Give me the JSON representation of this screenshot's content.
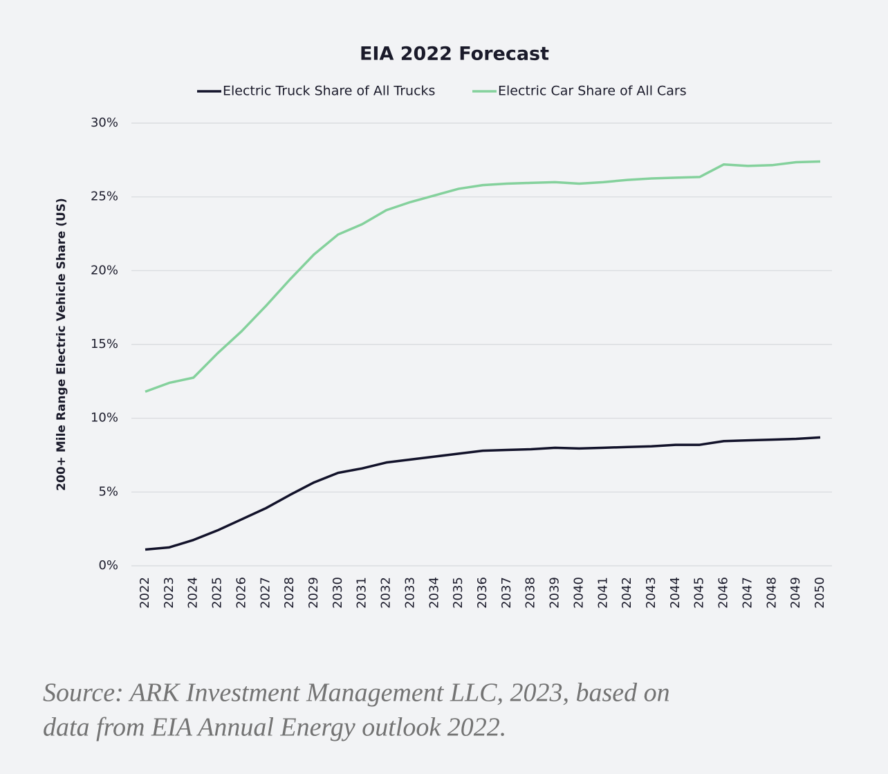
{
  "chart_data": {
    "type": "line",
    "title": "EIA 2022 Forecast",
    "y_label": "200+ Mile Range Electric Vehicle Share (US)",
    "categories": [
      "2022",
      "2023",
      "2024",
      "2025",
      "2026",
      "2027",
      "2028",
      "2029",
      "2030",
      "2031",
      "2032",
      "2033",
      "2034",
      "2035",
      "2036",
      "2037",
      "2038",
      "2039",
      "2040",
      "2041",
      "2042",
      "2043",
      "2044",
      "2045",
      "2046",
      "2047",
      "2048",
      "2049",
      "2050"
    ],
    "series": [
      {
        "name": "Electric Truck Share of All Trucks",
        "color": "#12122a",
        "values": [
          1.1,
          1.25,
          1.75,
          2.4,
          3.15,
          3.9,
          4.8,
          5.65,
          6.3,
          6.6,
          7.0,
          7.2,
          7.4,
          7.6,
          7.8,
          7.85,
          7.9,
          8.0,
          7.95,
          8.0,
          8.05,
          8.1,
          8.2,
          8.2,
          8.45,
          8.5,
          8.55,
          8.6,
          8.7
        ]
      },
      {
        "name": "Electric Car Share of All Cars",
        "color": "#84d19c",
        "values": [
          11.8,
          12.4,
          12.75,
          14.4,
          15.9,
          17.6,
          19.4,
          21.1,
          22.45,
          23.15,
          24.1,
          24.65,
          25.1,
          25.55,
          25.8,
          25.9,
          25.95,
          26.0,
          25.9,
          26.0,
          26.15,
          26.25,
          26.3,
          26.35,
          27.2,
          27.1,
          27.15,
          27.35,
          27.4
        ]
      }
    ],
    "ylim": [
      0,
      30
    ],
    "yticks": [
      {
        "value": 0,
        "label": "0%"
      },
      {
        "value": 5,
        "label": "5%"
      },
      {
        "value": 10,
        "label": "10%"
      },
      {
        "value": 15,
        "label": "15%"
      },
      {
        "value": 20,
        "label": "20%"
      },
      {
        "value": 25,
        "label": "25%"
      },
      {
        "value": 30,
        "label": "30%"
      }
    ],
    "grid": true,
    "legend": "top",
    "source": [
      "Source: ARK Investment Management LLC, 2023, based on",
      "data from EIA Annual Energy outlook 2022."
    ]
  }
}
